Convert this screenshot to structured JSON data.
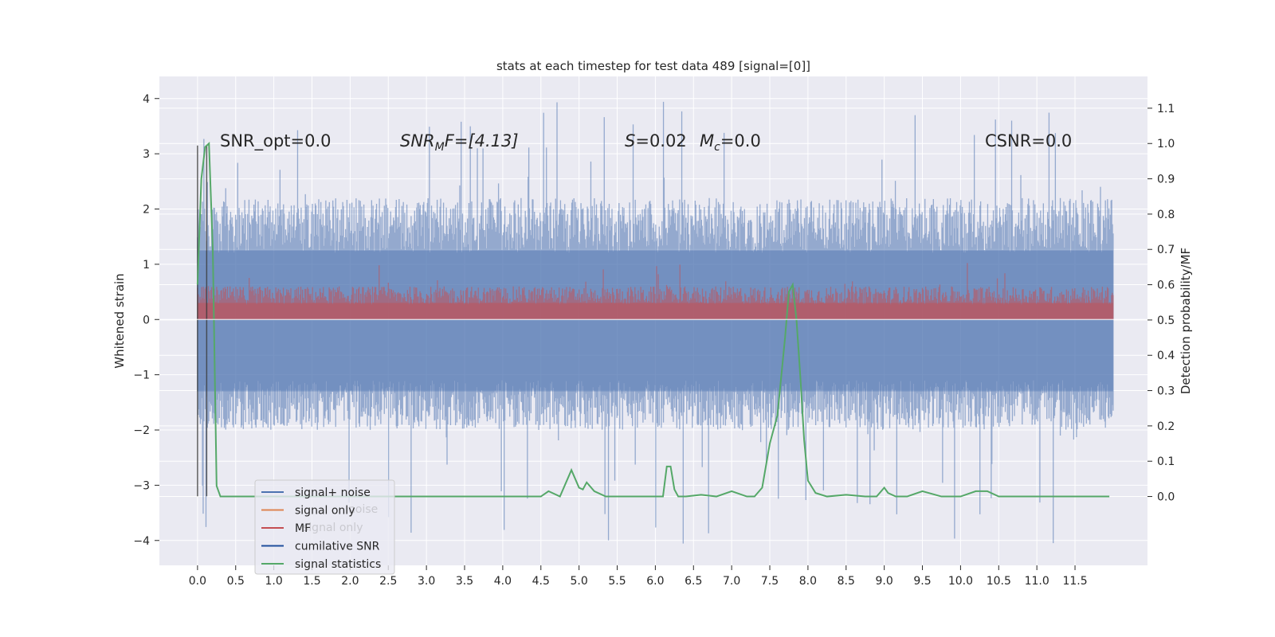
{
  "chart_data": {
    "type": "line",
    "title": "stats at each timestep for test data 489 [signal=[0]]",
    "ylabel": "Whitened strain",
    "y2label": "Detection probability/MF",
    "xlim": [
      -0.5,
      12.45
    ],
    "ylim": [
      -4.45,
      4.4
    ],
    "y2lim": [
      -0.195,
      1.19
    ],
    "x_ticks": [
      "0.0",
      "0.5",
      "1.0",
      "1.5",
      "2.0",
      "2.5",
      "3.0",
      "3.5",
      "4.0",
      "4.5",
      "5.0",
      "5.5",
      "6.0",
      "6.5",
      "7.0",
      "7.5",
      "8.0",
      "8.5",
      "9.0",
      "9.5",
      "10.0",
      "10.5",
      "11.0",
      "11.5"
    ],
    "y_ticks": [
      "4",
      "3",
      "2",
      "1",
      "0",
      "−1",
      "−2",
      "−3",
      "−4"
    ],
    "y2_ticks": [
      "1.1",
      "1.0",
      "0.9",
      "0.8",
      "0.7",
      "0.6",
      "0.5",
      "0.4",
      "0.3",
      "0.2",
      "0.1",
      "0.0"
    ],
    "annotations": {
      "snr_opt": "SNR_opt=0.0",
      "snr_mf": "F=[4.13]",
      "s_mc": "=0.02",
      "mc_val": "=0.0",
      "csnr": "CSNR=0.0"
    },
    "grid": true,
    "legend_position": "lower-left",
    "legend": [
      {
        "label": "signal+ noise",
        "color": "#4c72b0"
      },
      {
        "label": "signal only",
        "color": "#dd8452"
      },
      {
        "label": "MF",
        "color": "#c44e52"
      },
      {
        "label": "cumilative SNR",
        "color": "#1f4e9c"
      },
      {
        "label": "signal statistics",
        "color": "#55a868"
      }
    ],
    "legend_ghost_labels": [
      "noise",
      "signal only"
    ],
    "series": [
      {
        "name": "signal+ noise",
        "kind": "noise_band",
        "color": "#4c72b0",
        "x_range": [
          0.0,
          12.0
        ],
        "typical_range": [
          -2.0,
          2.2
        ],
        "extremes": [
          -4.1,
          4.05
        ]
      },
      {
        "name": "MF",
        "kind": "mf_band",
        "color": "#c44e52",
        "x_range": [
          0.0,
          12.0
        ],
        "typical_range": [
          0.0,
          0.6
        ],
        "extremes": [
          0.0,
          1.05
        ]
      },
      {
        "name": "cumilative SNR",
        "kind": "vlines",
        "color": "#3a3a3a",
        "x": [
          0.0,
          0.12
        ],
        "y_range": [
          -3.2,
          3.15
        ]
      },
      {
        "name": "signal statistics",
        "kind": "line",
        "axis": "right",
        "color": "#55a868",
        "x": [
          0.0,
          0.05,
          0.1,
          0.15,
          0.2,
          0.25,
          0.3,
          0.5,
          1.0,
          2.0,
          3.0,
          4.0,
          4.5,
          4.6,
          4.75,
          4.9,
          5.0,
          5.05,
          5.1,
          5.2,
          5.35,
          5.5,
          6.0,
          6.1,
          6.15,
          6.2,
          6.25,
          6.3,
          6.4,
          6.6,
          6.8,
          7.0,
          7.2,
          7.3,
          7.4,
          7.5,
          7.6,
          7.7,
          7.75,
          7.8,
          7.85,
          7.9,
          7.95,
          8.0,
          8.1,
          8.25,
          8.5,
          8.75,
          8.9,
          9.0,
          9.05,
          9.15,
          9.3,
          9.5,
          9.75,
          10.0,
          10.2,
          10.35,
          10.5,
          10.75,
          11.0,
          11.5,
          11.95
        ],
        "y": [
          0.6,
          0.9,
          0.99,
          1.0,
          0.7,
          0.03,
          0.0,
          0.0,
          0.0,
          0.0,
          0.0,
          0.0,
          0.0,
          0.015,
          0.0,
          0.075,
          0.025,
          0.02,
          0.04,
          0.015,
          0.0,
          0.0,
          0.0,
          0.0,
          0.085,
          0.085,
          0.02,
          0.0,
          0.0,
          0.005,
          0.0,
          0.015,
          0.0,
          0.0,
          0.025,
          0.15,
          0.23,
          0.45,
          0.58,
          0.6,
          0.5,
          0.34,
          0.16,
          0.045,
          0.01,
          0.0,
          0.005,
          0.0,
          0.0,
          0.025,
          0.01,
          0.0,
          0.0,
          0.015,
          0.0,
          0.0,
          0.015,
          0.015,
          0.0,
          0.0,
          0.0,
          0.0,
          0.0
        ]
      }
    ]
  }
}
